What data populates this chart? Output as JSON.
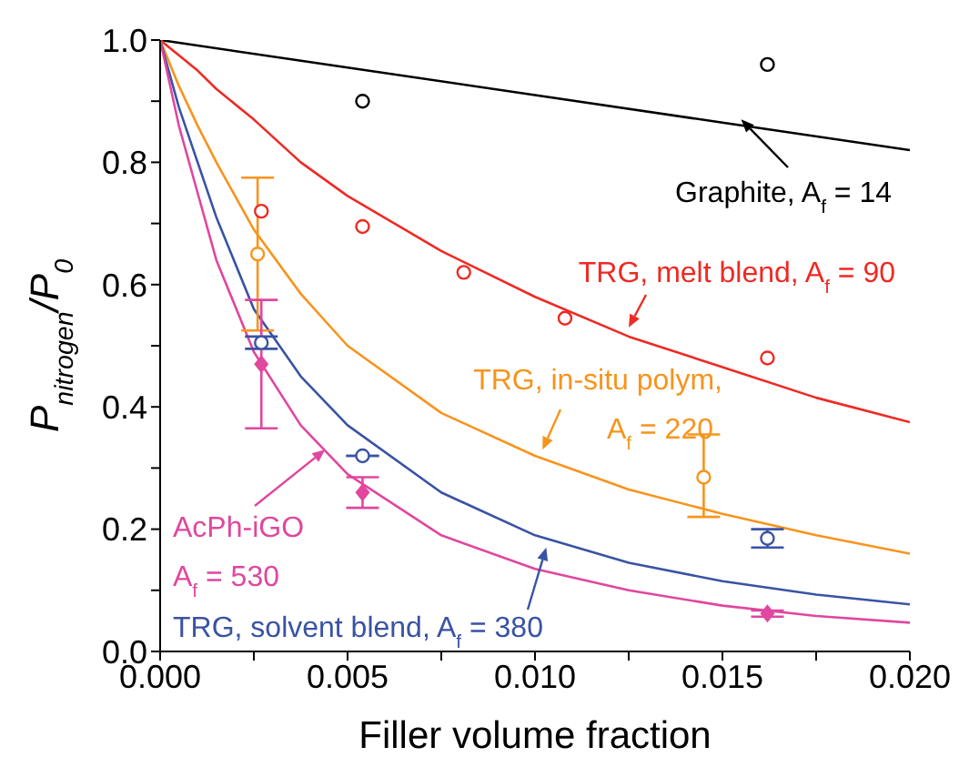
{
  "chart_data": {
    "type": "scatter",
    "xlabel": "Filler volume fraction",
    "ylabel": "P$_{nitrogen}$/P$_{0}$",
    "xlim": [
      0,
      0.02
    ],
    "xticks": [
      {
        "value": 0,
        "label": "0.000"
      },
      {
        "value": 0.0025,
        "label": null
      },
      {
        "value": 0.005,
        "label": "0.005"
      },
      {
        "value": 0.0075,
        "label": null
      },
      {
        "value": 0.01,
        "label": "0.010"
      },
      {
        "value": 0.0125,
        "label": null
      },
      {
        "value": 0.015,
        "label": "0.015"
      },
      {
        "value": 0.0175,
        "label": null
      },
      {
        "value": 0.02,
        "label": "0.020"
      }
    ],
    "ylim": [
      0,
      1
    ],
    "yticks": [
      {
        "value": 0,
        "label": "0.0"
      },
      {
        "value": 0.1,
        "label": null
      },
      {
        "value": 0.2,
        "label": "0.2"
      },
      {
        "value": 0.3,
        "label": null
      },
      {
        "value": 0.4,
        "label": "0.4"
      },
      {
        "value": 0.5,
        "label": null
      },
      {
        "value": 0.6,
        "label": "0.6"
      },
      {
        "value": 0.7,
        "label": null
      },
      {
        "value": 0.8,
        "label": "0.8"
      },
      {
        "value": 0.9,
        "label": null
      },
      {
        "value": 1,
        "label": "1.0"
      }
    ],
    "grid": false,
    "series": [
      {
        "type": "line",
        "color": "#000000",
        "marker": "none",
        "x": [
          0,
          0.005,
          0.01,
          0.015,
          0.02
        ],
        "values": [
          1,
          0.955,
          0.91,
          0.865,
          0.82
        ]
      },
      {
        "type": "line",
        "color": "#ee2a24",
        "marker": "none",
        "x": [
          0,
          0.0005,
          0.001,
          0.0015,
          0.0025,
          0.00375,
          0.005,
          0.0075,
          0.01,
          0.0125,
          0.015,
          0.0175,
          0.02
        ],
        "values": [
          1,
          0.975,
          0.95,
          0.92,
          0.87,
          0.8,
          0.745,
          0.655,
          0.58,
          0.515,
          0.465,
          0.415,
          0.375
        ]
      },
      {
        "type": "line",
        "color": "#f7941d",
        "marker": "none",
        "x": [
          0,
          0.0005,
          0.001,
          0.0015,
          0.0025,
          0.00375,
          0.005,
          0.0075,
          0.01,
          0.0125,
          0.015,
          0.0175,
          0.02
        ],
        "values": [
          1,
          0.925,
          0.86,
          0.8,
          0.69,
          0.585,
          0.5,
          0.39,
          0.32,
          0.265,
          0.225,
          0.19,
          0.16
        ]
      },
      {
        "type": "line",
        "color": "#3953a4",
        "marker": "none",
        "x": [
          0,
          0.0005,
          0.001,
          0.0015,
          0.0025,
          0.00375,
          0.005,
          0.0075,
          0.01,
          0.0125,
          0.015,
          0.0175,
          0.02
        ],
        "values": [
          1,
          0.89,
          0.8,
          0.71,
          0.56,
          0.45,
          0.37,
          0.26,
          0.19,
          0.145,
          0.115,
          0.093,
          0.077
        ]
      },
      {
        "type": "line",
        "color": "#e0479e",
        "marker": "none",
        "x": [
          0,
          0.0005,
          0.001,
          0.0015,
          0.0025,
          0.00375,
          0.005,
          0.0075,
          0.01,
          0.0125,
          0.015,
          0.0175,
          0.02
        ],
        "values": [
          1,
          0.86,
          0.75,
          0.64,
          0.49,
          0.37,
          0.29,
          0.19,
          0.135,
          0.1,
          0.075,
          0.058,
          0.047
        ]
      },
      {
        "color": "#000000",
        "marker": "circle",
        "x": [
          0.0054,
          0.0162
        ],
        "values": [
          0.9,
          0.96
        ]
      },
      {
        "color": "#ee2a24",
        "marker": "circle",
        "x": [
          0.0027,
          0.0054,
          0.0081,
          0.0108,
          0.0162
        ],
        "values": [
          0.72,
          0.695,
          0.62,
          0.545,
          0.48
        ]
      },
      {
        "color": "#f7941d",
        "marker": "circle",
        "x": [
          0.0026,
          0.0145
        ],
        "values": [
          0.65,
          0.285
        ],
        "errors": [
          [
            0.525,
            0.775
          ],
          [
            0.22,
            0.355
          ]
        ]
      },
      {
        "color": "#3953a4",
        "marker": "circle",
        "x": [
          0.0027,
          0.0054,
          0.0162
        ],
        "values": [
          0.505,
          0.32,
          0.185
        ],
        "errors": [
          0.01,
          null,
          0.015
        ]
      },
      {
        "color": "#e0479e",
        "marker": "diamond",
        "x": [
          0.0027,
          0.0054,
          0.0162
        ],
        "values": [
          0.47,
          0.26,
          0.062
        ],
        "errors": [
          [
            0.365,
            0.575
          ],
          [
            0.235,
            0.285
          ],
          0.005
        ]
      }
    ],
    "annotations": [
      {
        "text": "Graphite, A$_{f}$ = 14",
        "x": 0.0155,
        "y": 0.87
      },
      {
        "text": "TRG, melt blend, A$_{f}$ = 90",
        "x": 0.0125,
        "y": 0.53
      },
      {
        "text": "TRG, in-situ polym,\nA$_{f}$ = 220",
        "x": 0.0102,
        "y": 0.33
      },
      {
        "text": "TRG, solvent blend, A$_{f}$ = 380",
        "x": 0.0103,
        "y": 0.17
      },
      {
        "text": "AcPh-iGO\nA$_{f}$ = 530",
        "x": 0.0044,
        "y": 0.33
      }
    ]
  }
}
